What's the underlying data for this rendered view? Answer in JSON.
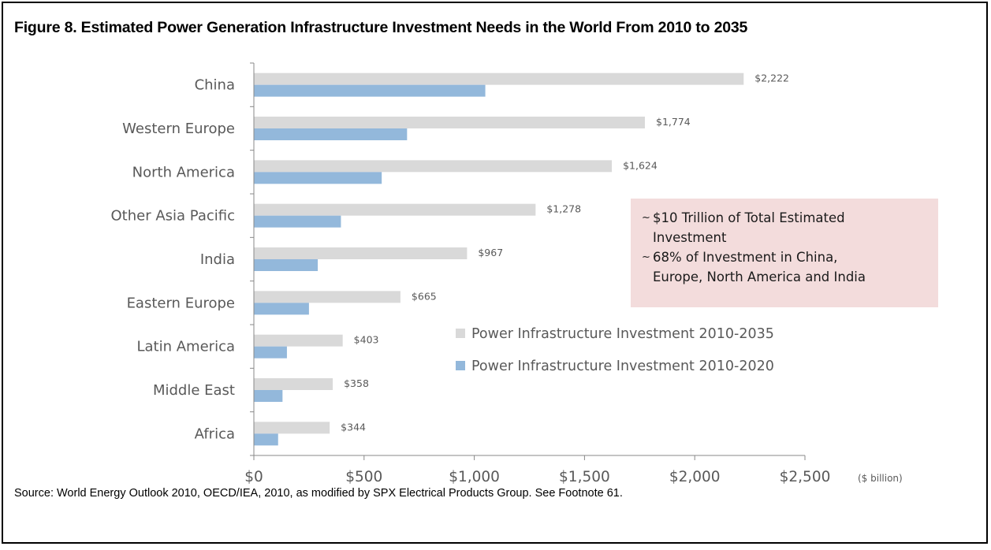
{
  "title": "Figure 8. Estimated Power Generation Infrastructure Investment Needs in the World From 2010 to 2035",
  "source": "Source: World Energy Outlook 2010, OECD/IEA, 2010, as modified by SPX Electrical Products Group.  See Footnote 61.",
  "callout": {
    "items": [
      {
        "marker": "~",
        "lines": [
          "$10 Trillion of Total Estimated",
          "Investment"
        ]
      },
      {
        "marker": "~",
        "lines": [
          "68% of Investment in China,",
          "Europe, North America and India"
        ]
      }
    ]
  },
  "colors": {
    "series_2035": "#d9d9d9",
    "series_2020": "#93b8db",
    "callout_bg": "#f3dcdc",
    "axis": "#888888",
    "text": "#595959"
  },
  "chart_data": {
    "type": "bar",
    "orientation": "horizontal",
    "categories": [
      "China",
      "Western Europe",
      "North America",
      "Other Asia Pacific",
      "India",
      "Eastern Europe",
      "Latin America",
      "Middle East",
      "Africa"
    ],
    "series": [
      {
        "name": "Power Infrastructure Investment 2010-2035",
        "values": [
          2222,
          1774,
          1624,
          1278,
          967,
          665,
          403,
          358,
          344
        ],
        "labels": [
          "$2,222",
          "$1,774",
          "$1,624",
          "$1,278",
          "$967",
          "$665",
          "$403",
          "$358",
          "$344"
        ]
      },
      {
        "name": "Power Infrastructure Investment 2010-2020",
        "values": [
          1050,
          695,
          580,
          395,
          290,
          250,
          150,
          130,
          110
        ],
        "labels": []
      }
    ],
    "x_ticks": [
      "$0",
      "$500",
      "$1,000",
      "$1,500",
      "$2,000",
      "$2,500"
    ],
    "x_tick_values": [
      0,
      500,
      1000,
      1500,
      2000,
      2500
    ],
    "x_unit_label": "($ billion)",
    "xlim": [
      0,
      2500
    ],
    "grid": false,
    "legend_position": "center-right"
  }
}
